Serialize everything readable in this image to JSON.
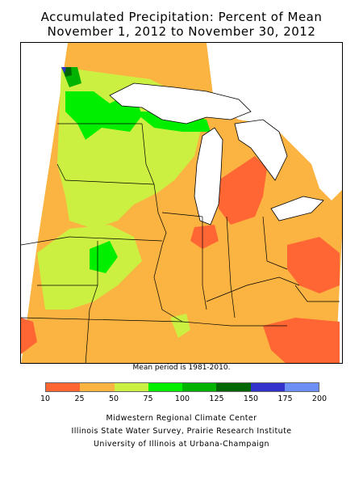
{
  "title": {
    "line1": "Accumulated Precipitation: Percent of Mean",
    "line2": "November 1, 2012 to November 30, 2012"
  },
  "map_note": "Mean period is 1981-2010.",
  "legend": {
    "bins": [
      {
        "from": 10,
        "to": 25,
        "color": "#ff6633"
      },
      {
        "from": 25,
        "to": 50,
        "color": "#fbb342"
      },
      {
        "from": 50,
        "to": 75,
        "color": "#ccf041"
      },
      {
        "from": 75,
        "to": 100,
        "color": "#00ee00"
      },
      {
        "from": 100,
        "to": 125,
        "color": "#00b300"
      },
      {
        "from": 125,
        "to": 150,
        "color": "#006600"
      },
      {
        "from": 150,
        "to": 175,
        "color": "#3333cc"
      },
      {
        "from": 175,
        "to": 200,
        "color": "#6b8ff5"
      }
    ],
    "tick_labels": [
      "10",
      "25",
      "50",
      "75",
      "100",
      "125",
      "150",
      "175",
      "200"
    ]
  },
  "credits": {
    "line1": "Midwestern Regional Climate Center",
    "line2": "Illinois State Water Survey, Prairie Research Institute",
    "line3": "University of Illinois at Urbana-Champaign"
  }
}
